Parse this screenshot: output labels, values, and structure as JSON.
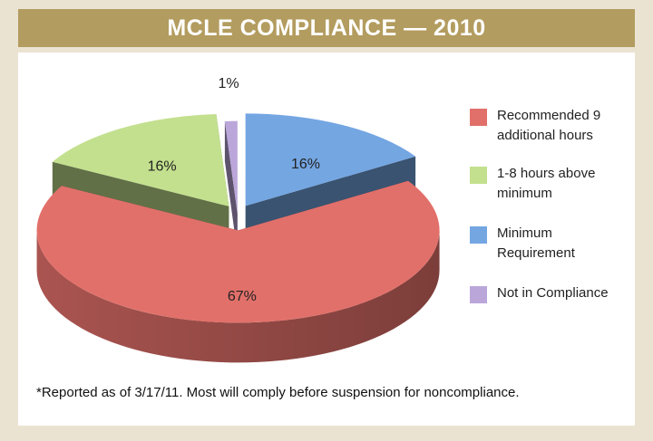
{
  "chart_data": {
    "type": "pie",
    "title": "MCLE COMPLIANCE — 2010",
    "categories": [
      "Recommended 9 additional hours",
      "1-8 hours above minimum",
      "Minimum Requirement",
      "Not in Compliance"
    ],
    "values": [
      67,
      16,
      16,
      1
    ],
    "value_labels": [
      "67%",
      "16%",
      "16%",
      "1%"
    ],
    "colors": [
      "#e2706a",
      "#c3e08e",
      "#74a6e2",
      "#bba6da"
    ],
    "legend": "right",
    "footnote": "*Reported as of 3/17/11. Most will comply before suspension for noncompliance."
  }
}
